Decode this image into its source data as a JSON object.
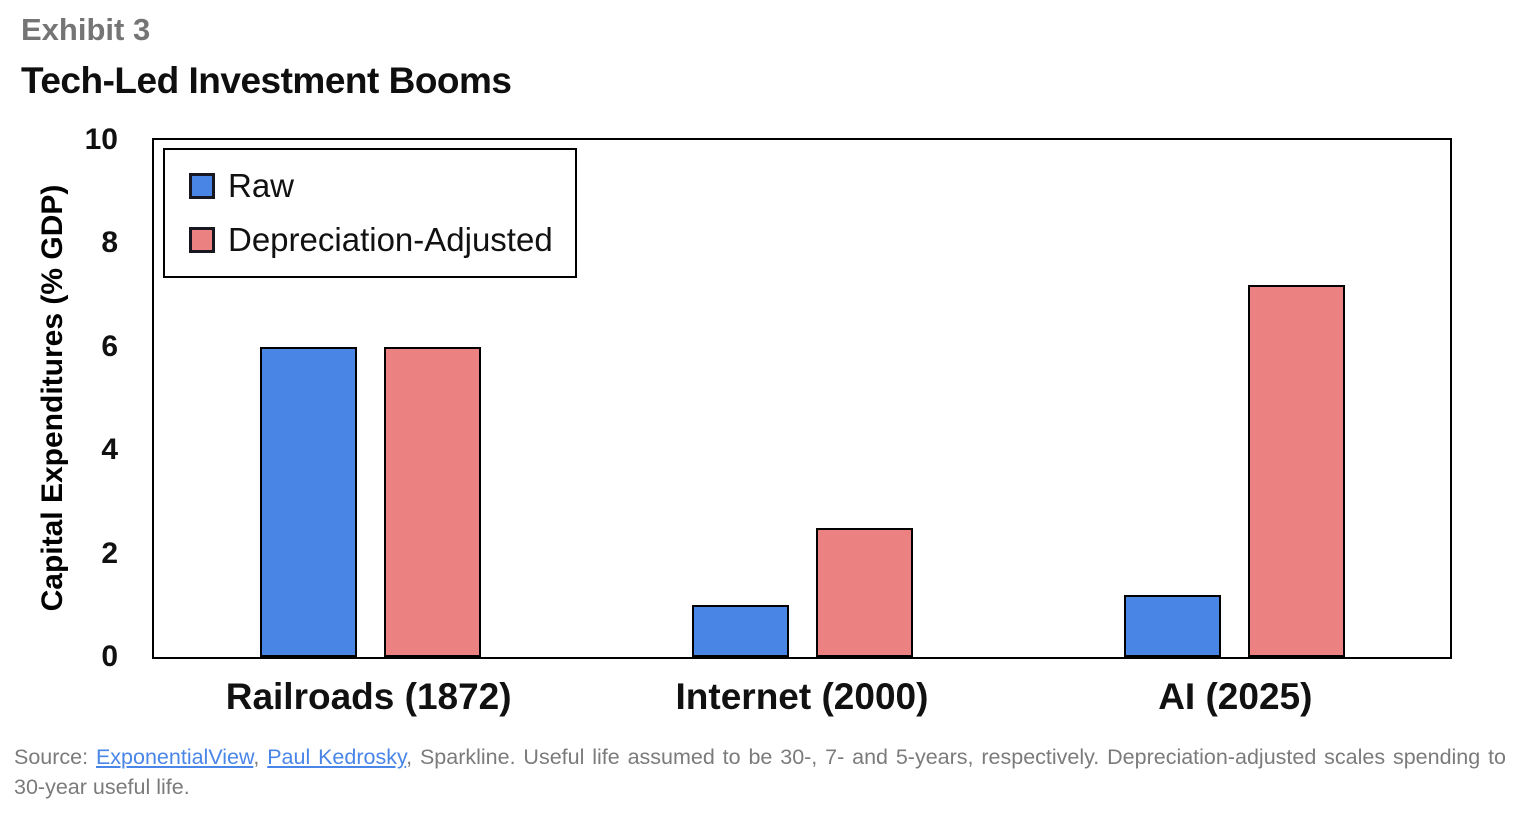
{
  "header": {
    "exhibit_label": "Exhibit 3",
    "title": "Tech-Led Investment Booms"
  },
  "chart_data": {
    "type": "bar",
    "title": "Tech-Led Investment Booms",
    "categories": [
      "Railroads (1872)",
      "Internet (2000)",
      "AI (2025)"
    ],
    "series": [
      {
        "name": "Raw",
        "color": "#4885E4",
        "values": [
          6.0,
          1.0,
          1.2
        ]
      },
      {
        "name": "Depreciation-Adjusted",
        "color": "#EC8181",
        "values": [
          6.0,
          2.5,
          7.2
        ]
      }
    ],
    "xlabel": "",
    "ylabel": "Capital Expenditures (% GDP)",
    "ylim": [
      0,
      10
    ],
    "yticks": [
      0,
      2,
      4,
      6,
      8,
      10
    ],
    "grid": false,
    "legend_position": "top-left",
    "bar_outline_color": "#000000"
  },
  "footer": {
    "source_prefix": "Source: ",
    "links": [
      {
        "label": "ExponentialView"
      },
      {
        "label": "Paul Kedrosky"
      }
    ],
    "sep": ", ",
    "source_rest": ", Sparkline. Useful life assumed to be 30-, 7- and 5-years, respectively. Depreciation-adjusted scales spending to 30-year useful life.",
    "link_color": "#4a86e8",
    "text_color": "#7b7b7b"
  }
}
